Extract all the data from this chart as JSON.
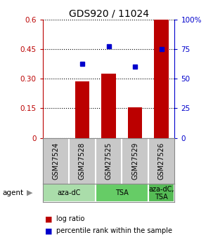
{
  "title": "GDS920 / 11024",
  "samples": [
    "GSM27524",
    "GSM27528",
    "GSM27525",
    "GSM27529",
    "GSM27526"
  ],
  "log_ratio": [
    0.0,
    0.285,
    0.325,
    0.155,
    0.6
  ],
  "percentile_rank": [
    null,
    0.625,
    0.775,
    0.6,
    0.75
  ],
  "bar_color": "#bb0000",
  "dot_color": "#0000cc",
  "ylim_left": [
    0,
    0.6
  ],
  "ylim_right": [
    0,
    100
  ],
  "yticks_left": [
    0,
    0.15,
    0.3,
    0.45,
    0.6
  ],
  "ytick_labels_left": [
    "0",
    "0.15",
    "0.30",
    "0.45",
    "0.6"
  ],
  "yticks_right": [
    0,
    25,
    50,
    75,
    100
  ],
  "ytick_labels_right": [
    "0",
    "25",
    "50",
    "75",
    "100%"
  ],
  "agent_groups": [
    {
      "label": "aza-dC",
      "spans": [
        0,
        2
      ],
      "color": "#aaddaa"
    },
    {
      "label": "TSA",
      "spans": [
        2,
        4
      ],
      "color": "#66cc66"
    },
    {
      "label": "aza-dC,\nTSA",
      "spans": [
        4,
        5
      ],
      "color": "#55bb55"
    }
  ],
  "legend_log_ratio": "log ratio",
  "legend_percentile": "percentile rank within the sample",
  "background_color": "#ffffff",
  "sample_box_color": "#c8c8c8",
  "bar_width": 0.55
}
